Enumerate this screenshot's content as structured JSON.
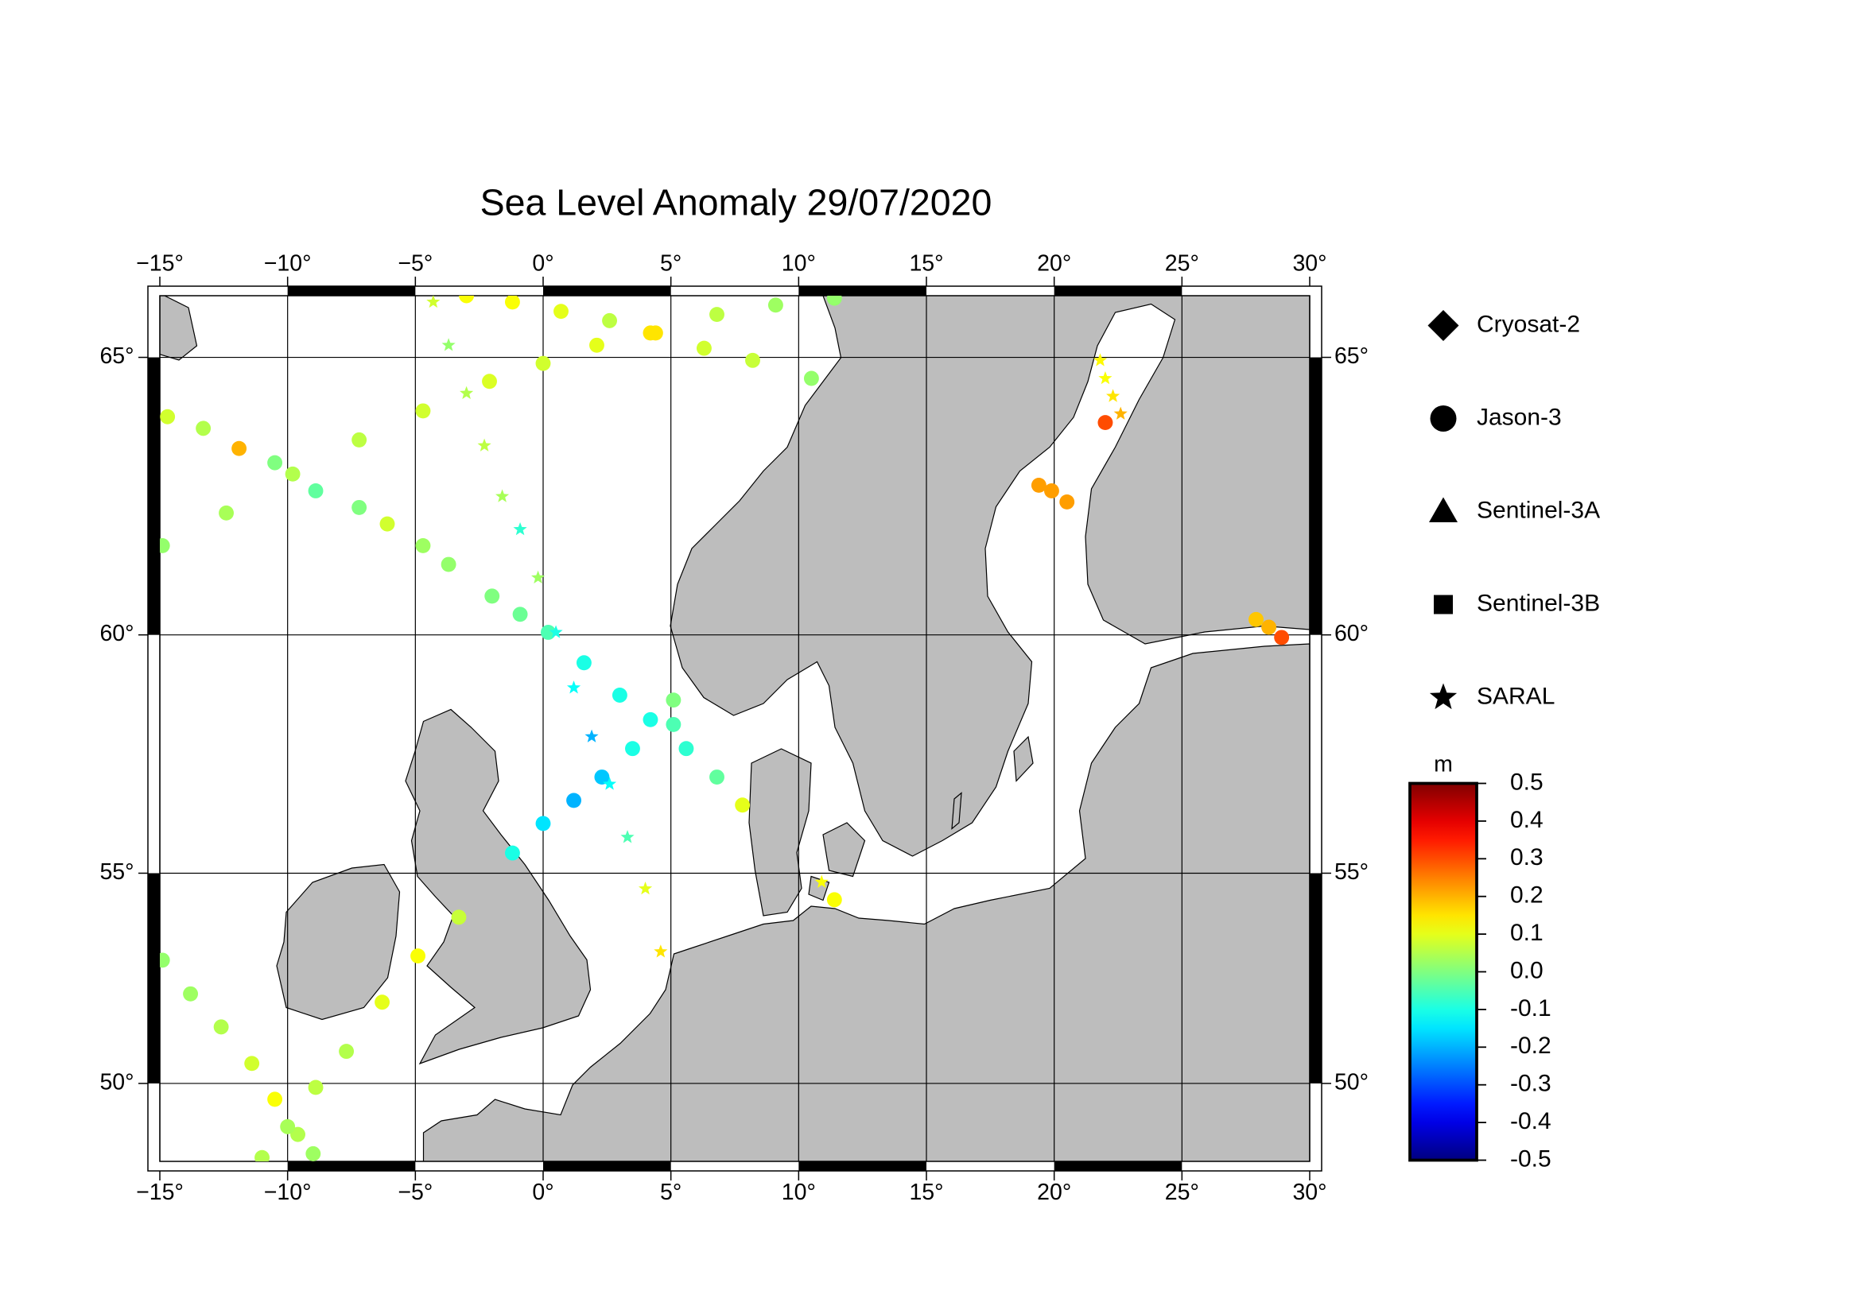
{
  "chart_data": {
    "type": "map",
    "projection": "mercator",
    "title": "Sea Level Anomaly 29/07/2020",
    "xlim": [
      -15,
      30
    ],
    "ylim": [
      48,
      66
    ],
    "grid": true,
    "xticks": [
      {
        "value": -15,
        "label": "−15°"
      },
      {
        "value": -10,
        "label": "−10°"
      },
      {
        "value": -5,
        "label": "−5°"
      },
      {
        "value": 0,
        "label": "0°"
      },
      {
        "value": 5,
        "label": "5°"
      },
      {
        "value": 10,
        "label": "10°"
      },
      {
        "value": 15,
        "label": "15°"
      },
      {
        "value": 20,
        "label": "20°"
      },
      {
        "value": 25,
        "label": "25°"
      },
      {
        "value": 30,
        "label": "30°"
      }
    ],
    "yticks": [
      {
        "value": 50,
        "label": "50°"
      },
      {
        "value": 55,
        "label": "55°"
      },
      {
        "value": 60,
        "label": "60°"
      },
      {
        "value": 65,
        "label": "65°"
      }
    ],
    "colorbar": {
      "label": "m",
      "colormap": "jet",
      "lim": [
        -0.5,
        0.5
      ],
      "ticks": [
        0.5,
        0.4,
        0.3,
        0.2,
        0.1,
        {
          "value": 0,
          "label": "0.0"
        },
        -0.1,
        -0.2,
        -0.3,
        -0.4,
        -0.5
      ]
    },
    "series": [
      {
        "name": "Cryosat-2",
        "marker": "diamond",
        "x": [],
        "y": [],
        "values": []
      },
      {
        "name": "Jason-3",
        "marker": "circle",
        "x": [
          -14.9,
          -12.4,
          -9.8,
          -7.2,
          -4.7,
          -2.1,
          0,
          2.1,
          4.2,
          6.8,
          9.1,
          11.4,
          -14.7,
          -13.3,
          -11.9,
          -10.5,
          -8.9,
          -7.2,
          -6.1,
          -4.7,
          -3.7,
          -3.0,
          -1.2,
          0.7,
          2.6,
          4.4,
          6.3,
          8.2,
          10.5,
          -1.2,
          0,
          1.2,
          2.3,
          3.5,
          5.1,
          -2.0,
          -0.9,
          0.2,
          1.6,
          3.0,
          4.2,
          5.6,
          6.8,
          7.8,
          -14.9,
          -13.8,
          -12.6,
          -11.4,
          -10.5,
          -9.6,
          -9.0,
          -11.0,
          -10.0,
          -8.9,
          -7.7,
          -6.3,
          -4.9,
          -3.3,
          5.1,
          19.4,
          19.9,
          20.5,
          22.0,
          27.9,
          28.4,
          28.9,
          11.4
        ],
        "y": [
          61.7,
          62.3,
          63.0,
          63.6,
          64.1,
          64.6,
          64.9,
          65.2,
          65.4,
          65.7,
          65.85,
          65.96,
          64.0,
          63.8,
          63.45,
          63.2,
          62.7,
          62.4,
          62.1,
          61.7,
          61.35,
          66.0,
          65.9,
          65.75,
          65.6,
          65.4,
          65.15,
          64.95,
          64.65,
          55.45,
          56.1,
          56.6,
          57.1,
          57.7,
          58.2,
          60.75,
          60.4,
          60.05,
          59.45,
          58.8,
          58.3,
          57.7,
          57.1,
          56.5,
          53.0,
          52.2,
          51.4,
          50.5,
          49.6,
          48.7,
          48.2,
          48.1,
          48.9,
          49.9,
          50.8,
          52.0,
          53.1,
          54.0,
          58.7,
          62.8,
          62.7,
          62.5,
          63.9,
          60.3,
          60.15,
          59.95,
          54.4
        ],
        "values": [
          0.02,
          0.04,
          0.05,
          0.06,
          0.08,
          0.09,
          0.08,
          0.1,
          0.15,
          0.06,
          0.03,
          0.02,
          0.08,
          0.05,
          0.2,
          0.0,
          -0.03,
          0.0,
          0.08,
          0.03,
          0.02,
          0.12,
          0.12,
          0.1,
          0.06,
          0.15,
          0.08,
          0.07,
          0.02,
          -0.1,
          -0.15,
          -0.2,
          -0.18,
          -0.1,
          -0.05,
          0.0,
          -0.02,
          -0.05,
          -0.1,
          -0.1,
          -0.1,
          -0.08,
          -0.03,
          0.1,
          0.02,
          0.03,
          0.05,
          0.08,
          0.12,
          0.05,
          0.03,
          0.05,
          0.04,
          0.06,
          0.05,
          0.1,
          0.12,
          0.07,
          0.0,
          0.22,
          0.22,
          0.22,
          0.3,
          0.18,
          0.2,
          0.3,
          0.12
        ]
      },
      {
        "name": "Sentinel-3A",
        "marker": "triangle",
        "x": [],
        "y": [],
        "values": []
      },
      {
        "name": "Sentinel-3B",
        "marker": "square",
        "x": [],
        "y": [],
        "values": []
      },
      {
        "name": "SARAL",
        "marker": "star",
        "x": [
          -4.3,
          -3.7,
          -3.0,
          -2.3,
          -1.6,
          -0.9,
          -0.2,
          0.5,
          1.2,
          1.9,
          2.6,
          3.3,
          4.0,
          4.6,
          21.8,
          22.0,
          22.3,
          22.6,
          10.9
        ],
        "y": [
          65.9,
          65.2,
          64.4,
          63.5,
          62.6,
          62.0,
          61.1,
          60.05,
          58.95,
          57.95,
          56.95,
          55.8,
          54.65,
          53.2,
          64.95,
          64.65,
          64.35,
          64.05,
          54.8
        ],
        "values": [
          0.08,
          0.02,
          0.05,
          0.06,
          0.04,
          -0.08,
          0.03,
          -0.1,
          -0.12,
          -0.2,
          -0.12,
          -0.05,
          0.1,
          0.15,
          0.13,
          0.12,
          0.15,
          0.2,
          0.12
        ]
      }
    ]
  }
}
